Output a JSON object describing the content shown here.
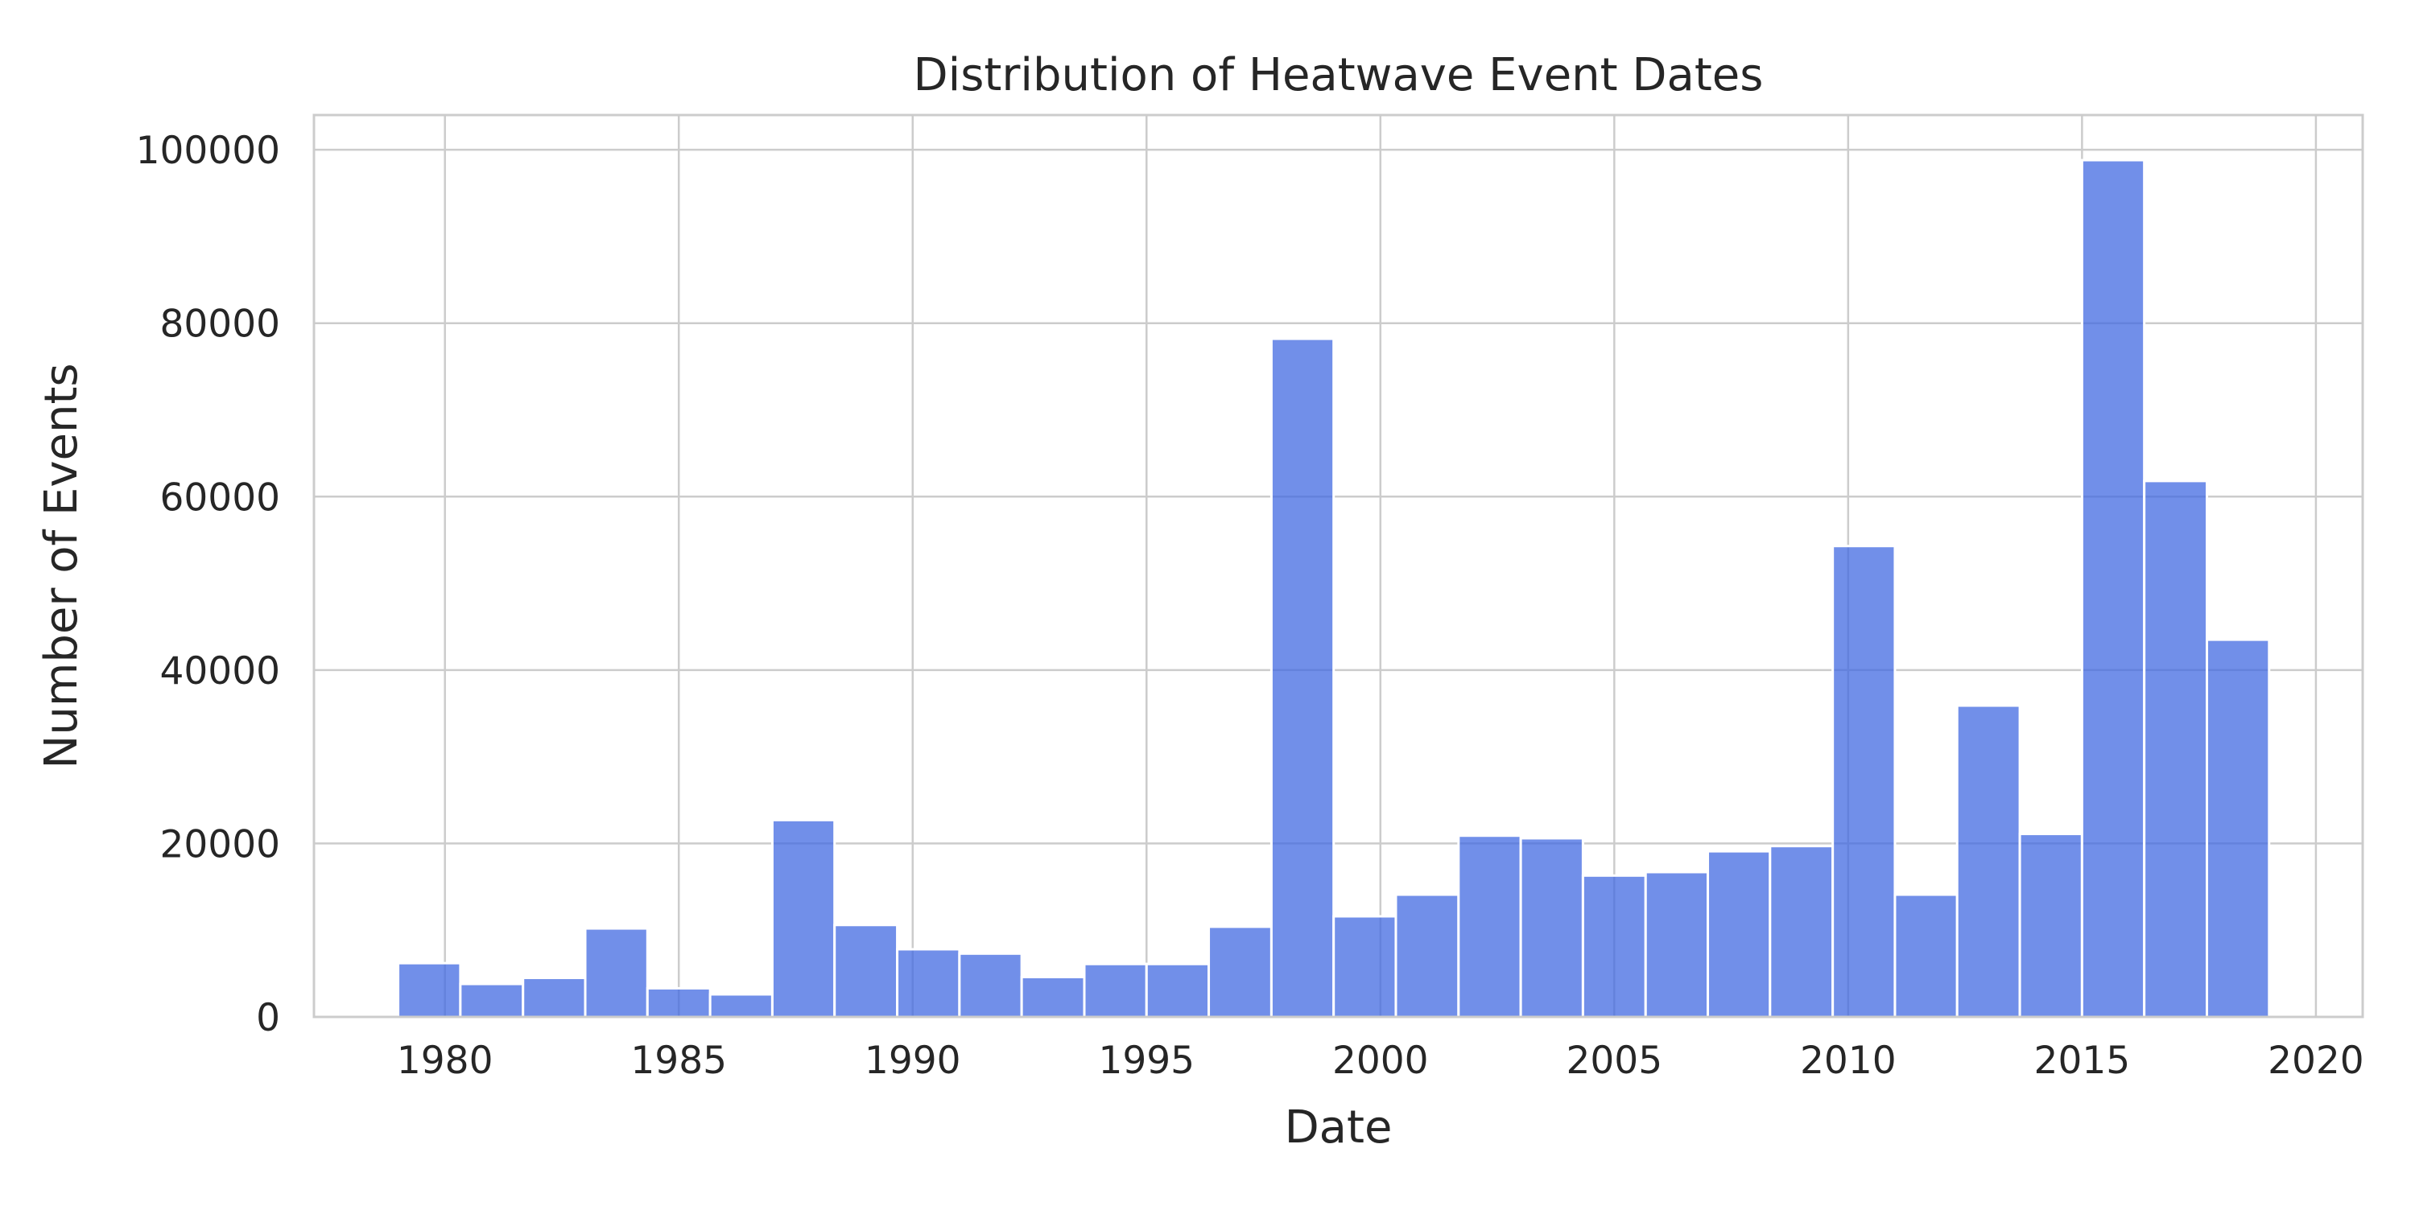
{
  "chart_data": {
    "type": "bar",
    "title": "Distribution of Heatwave Event Dates",
    "xlabel": "Date",
    "ylabel": "Number of Events",
    "bar_color": "#4169e1",
    "bar_opacity": 0.75,
    "grid": true,
    "xlim": [
      1977.2,
      2021.0
    ],
    "ylim": [
      0,
      104000
    ],
    "xticks": [
      1980,
      1985,
      1990,
      1995,
      2000,
      2005,
      2010,
      2015,
      2020
    ],
    "xtick_labels": [
      "1980",
      "1985",
      "1990",
      "1995",
      "2000",
      "2005",
      "2010",
      "2015",
      "2020"
    ],
    "yticks": [
      0,
      20000,
      40000,
      60000,
      80000,
      100000
    ],
    "ytick_labels": [
      "0",
      "20000",
      "40000",
      "60000",
      "80000",
      "100000"
    ],
    "bins": [
      {
        "start": 1979.0,
        "end": 1980.33,
        "value": 6200
      },
      {
        "start": 1980.33,
        "end": 1981.67,
        "value": 3800
      },
      {
        "start": 1981.67,
        "end": 1983.0,
        "value": 4500
      },
      {
        "start": 1983.0,
        "end": 1984.33,
        "value": 10200
      },
      {
        "start": 1984.33,
        "end": 1985.67,
        "value": 3300
      },
      {
        "start": 1985.67,
        "end": 1987.0,
        "value": 2600
      },
      {
        "start": 1987.0,
        "end": 1988.33,
        "value": 22700
      },
      {
        "start": 1988.33,
        "end": 1989.67,
        "value": 10600
      },
      {
        "start": 1989.67,
        "end": 1991.0,
        "value": 7800
      },
      {
        "start": 1991.0,
        "end": 1992.33,
        "value": 7300
      },
      {
        "start": 1992.33,
        "end": 1993.67,
        "value": 4600
      },
      {
        "start": 1993.67,
        "end": 1995.0,
        "value": 6100
      },
      {
        "start": 1995.0,
        "end": 1996.33,
        "value": 6100
      },
      {
        "start": 1996.33,
        "end": 1997.67,
        "value": 10400
      },
      {
        "start": 1997.67,
        "end": 1999.0,
        "value": 78200
      },
      {
        "start": 1999.0,
        "end": 2000.33,
        "value": 11600
      },
      {
        "start": 2000.33,
        "end": 2001.67,
        "value": 14100
      },
      {
        "start": 2001.67,
        "end": 2003.0,
        "value": 20900
      },
      {
        "start": 2003.0,
        "end": 2004.33,
        "value": 20600
      },
      {
        "start": 2004.33,
        "end": 2005.67,
        "value": 16300
      },
      {
        "start": 2005.67,
        "end": 2007.0,
        "value": 16700
      },
      {
        "start": 2007.0,
        "end": 2008.33,
        "value": 19100
      },
      {
        "start": 2008.33,
        "end": 2009.67,
        "value": 19700
      },
      {
        "start": 2009.67,
        "end": 2011.0,
        "value": 54300
      },
      {
        "start": 2011.0,
        "end": 2012.33,
        "value": 14100
      },
      {
        "start": 2012.33,
        "end": 2013.67,
        "value": 35900
      },
      {
        "start": 2013.67,
        "end": 2015.0,
        "value": 21100
      },
      {
        "start": 2015.0,
        "end": 2016.33,
        "value": 98800
      },
      {
        "start": 2016.33,
        "end": 2017.67,
        "value": 61800
      },
      {
        "start": 2017.67,
        "end": 2019.0,
        "value": 43500
      }
    ]
  }
}
